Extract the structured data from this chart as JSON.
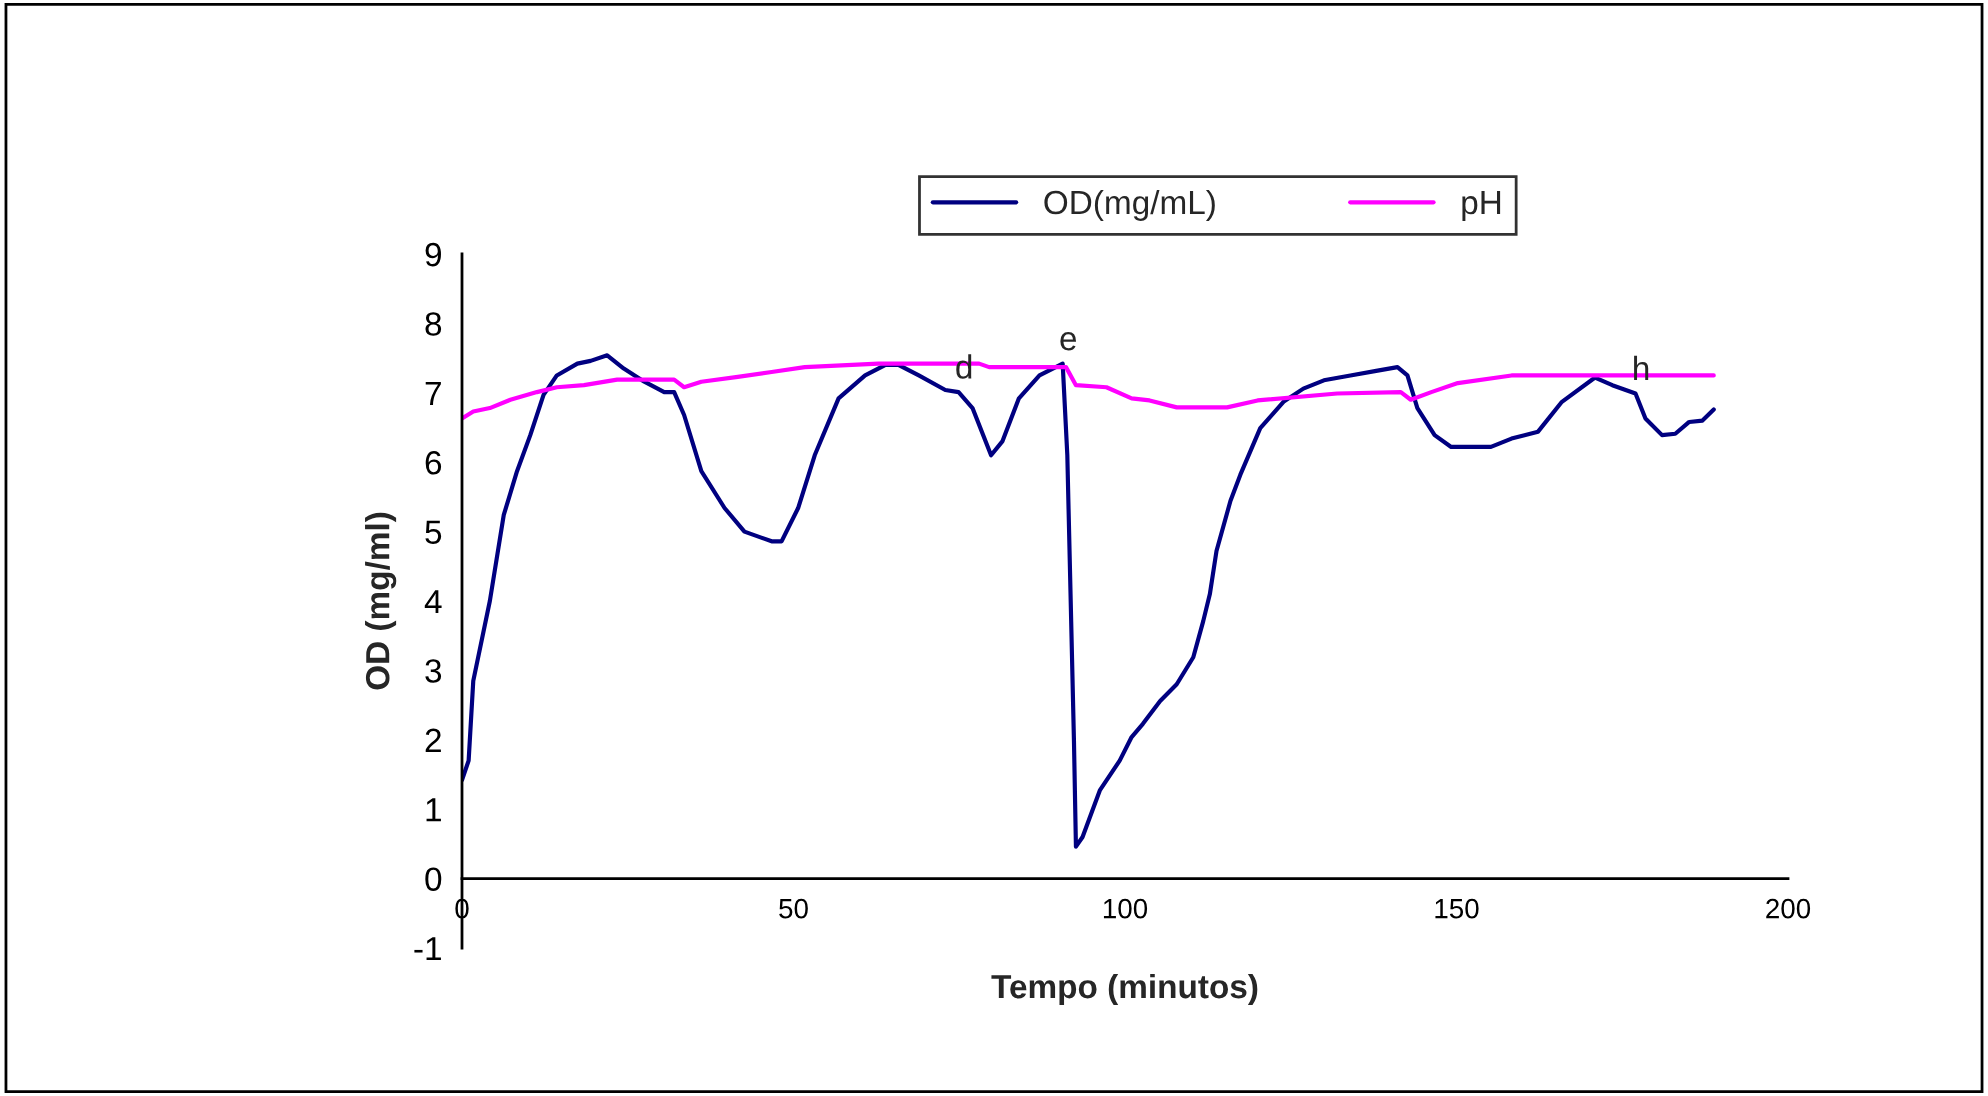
{
  "chart_data": {
    "type": "line",
    "xlabel": "Tempo (minutos)",
    "ylabel": "OD (mg/ml)",
    "xlim": [
      0,
      200
    ],
    "xticks": [
      0,
      50,
      100,
      150,
      200
    ],
    "ylim": [
      -1,
      9
    ],
    "yticks": [
      -1,
      0,
      1,
      2,
      3,
      4,
      5,
      6,
      7,
      8,
      9
    ],
    "grid": false,
    "legend": "top",
    "marker": "none",
    "line_style": "solid",
    "series": [
      {
        "name": "OD(mg/mL)",
        "color": "#000080",
        "x": [
          0,
          1.0,
          1.7,
          4.2,
          6.3,
          8.3,
          10.3,
          12.3,
          14.3,
          17.4,
          19.4,
          21.9,
          24.4,
          27.5,
          30.5,
          32.0,
          33.5,
          36.1,
          39.6,
          42.6,
          46.7,
          48.2,
          50.7,
          53.2,
          56.8,
          60.8,
          63.8,
          65.9,
          68.9,
          72.9,
          74.9,
          77.0,
          79.8,
          81.5,
          84.0,
          87.1,
          90.6,
          91.3,
          92.3,
          92.6,
          93.6,
          96.2,
          99.2,
          101.0,
          102.7,
          105.3,
          107.8,
          110.3,
          111.8,
          112.8,
          113.8,
          115.9,
          117.4,
          120.4,
          123.9,
          126.9,
          130.0,
          134.0,
          138.1,
          141.1,
          142.6,
          144.1,
          146.7,
          149.2,
          155.2,
          158.3,
          162.3,
          165.9,
          170.9,
          173.5,
          177.0,
          178.5,
          181.0,
          183.0,
          185.1,
          187.1,
          188.8
        ],
        "values": [
          1.42,
          1.7,
          2.85,
          4.0,
          5.24,
          5.87,
          6.39,
          6.97,
          7.25,
          7.42,
          7.46,
          7.54,
          7.35,
          7.16,
          7.01,
          7.01,
          6.68,
          5.87,
          5.34,
          5.0,
          4.86,
          4.86,
          5.34,
          6.1,
          6.92,
          7.25,
          7.4,
          7.4,
          7.25,
          7.04,
          7.01,
          6.78,
          6.1,
          6.3,
          6.92,
          7.25,
          7.42,
          6.1,
          1.99,
          0.46,
          0.6,
          1.27,
          1.7,
          2.04,
          2.23,
          2.56,
          2.8,
          3.19,
          3.71,
          4.1,
          4.72,
          5.44,
          5.82,
          6.49,
          6.87,
          7.06,
          7.18,
          7.25,
          7.32,
          7.37,
          7.25,
          6.78,
          6.39,
          6.22,
          6.22,
          6.34,
          6.44,
          6.87,
          7.22,
          7.11,
          6.99,
          6.63,
          6.39,
          6.41,
          6.58,
          6.6,
          6.76
        ]
      },
      {
        "name": "pH",
        "color": "#ff00ff",
        "x": [
          0,
          1.7,
          4.2,
          7.3,
          11.3,
          14.3,
          18.4,
          23.4,
          32.0,
          33.5,
          36.1,
          41.6,
          46.7,
          51.7,
          62.8,
          78.0,
          79.5,
          91.1,
          92.6,
          97.2,
          101.0,
          103.7,
          107.8,
          115.4,
          120.0,
          132.0,
          141.6,
          143.1,
          146.2,
          150.2,
          158.3,
          188.8
        ],
        "values": [
          6.63,
          6.73,
          6.78,
          6.9,
          7.01,
          7.08,
          7.11,
          7.19,
          7.19,
          7.08,
          7.16,
          7.23,
          7.3,
          7.37,
          7.42,
          7.42,
          7.37,
          7.37,
          7.11,
          7.08,
          6.92,
          6.89,
          6.79,
          6.79,
          6.89,
          6.99,
          7.01,
          6.9,
          7.01,
          7.14,
          7.25,
          7.25
        ]
      }
    ],
    "annotations": [
      {
        "text": "d",
        "x": 74.9,
        "y": 7.01
      },
      {
        "text": "e",
        "x": 90.6,
        "y": 7.42
      },
      {
        "text": "h",
        "x": 177.0,
        "y": 6.99
      }
    ]
  }
}
